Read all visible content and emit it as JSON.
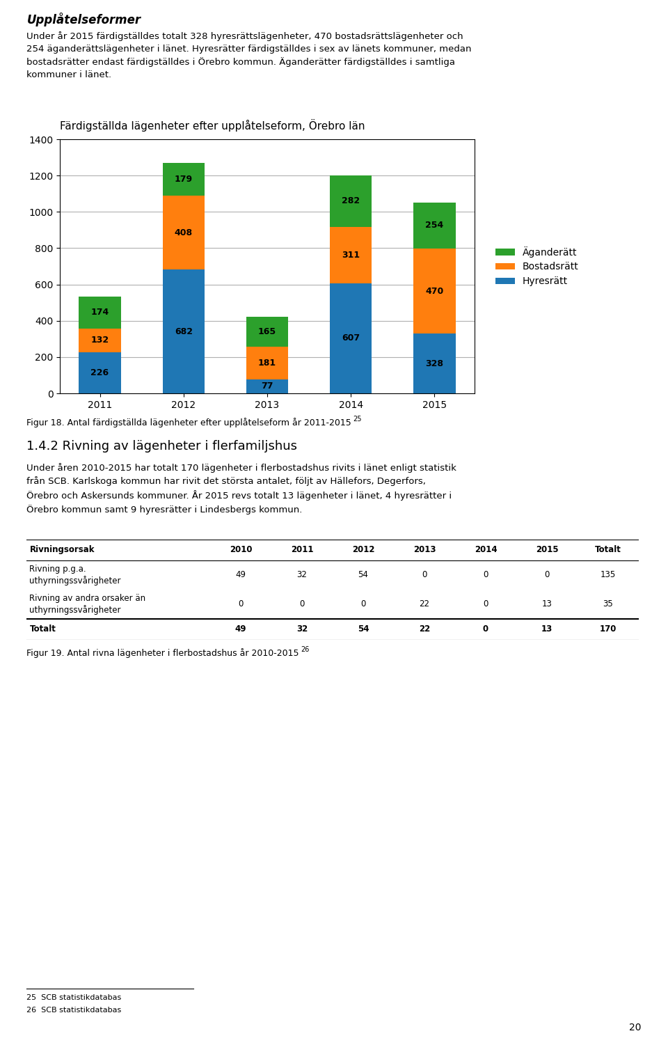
{
  "chart_data": [
    {
      "type": "bar",
      "title": "Färdigställda lägenheter efter upplåtelseform, Örebro län",
      "categories": [
        "2011",
        "2012",
        "2013",
        "2014",
        "2015"
      ],
      "series": [
        {
          "name": "Hyresrätt",
          "values": [
            226,
            682,
            77,
            607,
            328
          ]
        },
        {
          "name": "Bostadsrätt",
          "values": [
            132,
            408,
            181,
            311,
            470
          ]
        },
        {
          "name": "Äganderätt",
          "values": [
            174,
            179,
            165,
            282,
            254
          ]
        }
      ],
      "stacked": true,
      "data_labels": true,
      "ylim": [
        0,
        1400
      ],
      "yticks": [
        0,
        200,
        400,
        600,
        800,
        1000,
        1200,
        1400
      ],
      "grid": true,
      "legend": "right"
    },
    {
      "type": "table",
      "columns": [
        "Rivningsorsak",
        "2010",
        "2011",
        "2012",
        "2013",
        "2014",
        "2015",
        "Totalt"
      ],
      "rows": [
        {
          "label": "Rivning p.g.a.\nuthyrningssvårigheter",
          "values": [
            49,
            32,
            54,
            0,
            0,
            0,
            135
          ]
        },
        {
          "label": "Rivning av andra orsaker än\nuthyrningssvårigheter",
          "values": [
            0,
            0,
            0,
            22,
            0,
            13,
            35
          ]
        },
        {
          "label": "Totalt",
          "values": [
            49,
            32,
            54,
            22,
            0,
            13,
            170
          ]
        }
      ]
    }
  ],
  "annotations": [
    "Upplåtelseformer",
    "Under år 2015 färdigställdes totalt 328 hyresrättslägenheter, 470 bostadsrättslägenheter och\n254 äganderättslägenheter i länet. Hyresrätter färdigställdes i sex av länets kommuner, medan\nbostadsrätter endast färdigställdes i Örebro kommun. Äganderätter färdigställdes i samtliga\nkommuner i länet.",
    "Figur 18. Antal färdigställda lägenheter efter upplåtelseform år 2011-2015",
    "25",
    "1.4.2 Rivning av lägenheter i flerfamiljshus",
    "Under åren 2010-2015 har totalt 170 lägenheter i flerbostadshus rivits i länet enligt statistik\nfrån SCB. Karlskoga kommun har rivit det största antalet, följt av Hällefors, Degerfors,\nÖrebro och Askersunds kommuner. År 2015 revs totalt 13 lägenheter i länet, 4 hyresrätter i\nÖrebro kommun samt 9 hyresrätter i Lindesbergs kommun.",
    "Figur 19. Antal rivna lägenheter i flerbostadshus år 2010-2015",
    "26",
    "25  SCB statistikdatabas",
    "26  SCB statistikdatabas",
    "20"
  ]
}
